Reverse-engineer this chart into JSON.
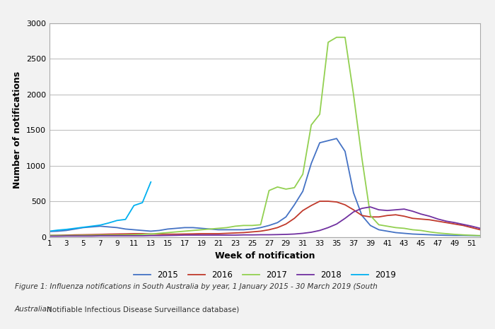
{
  "weeks": [
    1,
    2,
    3,
    4,
    5,
    6,
    7,
    8,
    9,
    10,
    11,
    12,
    13,
    14,
    15,
    16,
    17,
    18,
    19,
    20,
    21,
    22,
    23,
    24,
    25,
    26,
    27,
    28,
    29,
    30,
    31,
    32,
    33,
    34,
    35,
    36,
    37,
    38,
    39,
    40,
    41,
    42,
    43,
    44,
    45,
    46,
    47,
    48,
    49,
    50,
    51,
    52
  ],
  "y2015": [
    75,
    80,
    90,
    110,
    130,
    140,
    150,
    140,
    130,
    110,
    100,
    90,
    80,
    90,
    110,
    120,
    130,
    130,
    120,
    110,
    100,
    100,
    100,
    100,
    110,
    130,
    160,
    200,
    280,
    450,
    640,
    1030,
    1320,
    1350,
    1380,
    1200,
    620,
    300,
    160,
    100,
    80,
    60,
    50,
    40,
    35,
    30,
    25,
    22,
    20,
    20,
    18,
    15
  ],
  "y2016": [
    20,
    22,
    25,
    28,
    30,
    32,
    35,
    38,
    40,
    42,
    45,
    45,
    40,
    38,
    38,
    38,
    40,
    42,
    45,
    45,
    45,
    50,
    55,
    60,
    70,
    80,
    100,
    130,
    180,
    260,
    370,
    440,
    500,
    500,
    490,
    450,
    380,
    300,
    280,
    280,
    300,
    310,
    290,
    260,
    250,
    240,
    220,
    200,
    180,
    160,
    130,
    100
  ],
  "y2017": [
    20,
    20,
    20,
    20,
    22,
    22,
    25,
    25,
    25,
    28,
    30,
    35,
    40,
    50,
    60,
    70,
    80,
    90,
    100,
    110,
    120,
    130,
    150,
    160,
    160,
    170,
    650,
    700,
    670,
    690,
    880,
    1570,
    1720,
    2730,
    2800,
    2800,
    2000,
    1100,
    300,
    170,
    150,
    130,
    120,
    100,
    90,
    70,
    55,
    45,
    35,
    28,
    22,
    18
  ],
  "y2018": [
    10,
    10,
    12,
    12,
    12,
    12,
    15,
    15,
    15,
    15,
    15,
    15,
    18,
    18,
    20,
    22,
    25,
    25,
    25,
    25,
    25,
    25,
    25,
    28,
    28,
    30,
    30,
    32,
    35,
    40,
    50,
    65,
    90,
    130,
    180,
    260,
    350,
    400,
    420,
    380,
    370,
    380,
    390,
    360,
    320,
    290,
    250,
    220,
    200,
    175,
    150,
    120
  ],
  "y2019_weeks": [
    1,
    2,
    3,
    4,
    5,
    6,
    7,
    8,
    9,
    10,
    11,
    12,
    13
  ],
  "y2019": [
    80,
    95,
    105,
    120,
    135,
    150,
    165,
    195,
    230,
    245,
    440,
    480,
    770
  ],
  "colors": {
    "2015": "#4472C4",
    "2016": "#C0392B",
    "2017": "#92D050",
    "2018": "#7030A0",
    "2019": "#00B0F0"
  },
  "xlabel": "Week of notification",
  "ylabel": "Number of notifications",
  "ylim": [
    0,
    3000
  ],
  "yticks": [
    0,
    500,
    1000,
    1500,
    2000,
    2500,
    3000
  ],
  "xtick_labels": [
    "1",
    "3",
    "5",
    "7",
    "9",
    "11",
    "13",
    "15",
    "17",
    "19",
    "21",
    "23",
    "25",
    "27",
    "29",
    "31",
    "33",
    "35",
    "37",
    "39",
    "41",
    "43",
    "45",
    "47",
    "49",
    "51"
  ],
  "xtick_positions": [
    1,
    3,
    5,
    7,
    9,
    11,
    13,
    15,
    17,
    19,
    21,
    23,
    25,
    27,
    29,
    31,
    33,
    35,
    37,
    39,
    41,
    43,
    45,
    47,
    49,
    51
  ],
  "legend_labels": [
    "2015",
    "2016",
    "2017",
    "2018",
    "2019"
  ],
  "caption_italic": "Figure 1: Influenza notifications in South Australia by year, 1 January 2015 - 30 March 2019 (South\nAustralian ",
  "caption_italic2": "Notifiable Infectious Disease Surveillance database)",
  "caption_full": "Figure 1: Influenza notifications in South Australia by year, 1 January 2015 - 30 March 2019 (South Australian Notifiable Infectious Disease Surveillance database)",
  "background_color": "#F2F2F2",
  "plot_bg_color": "#FFFFFF",
  "grid_color": "#C0C0C0",
  "border_color": "#AAAAAA"
}
